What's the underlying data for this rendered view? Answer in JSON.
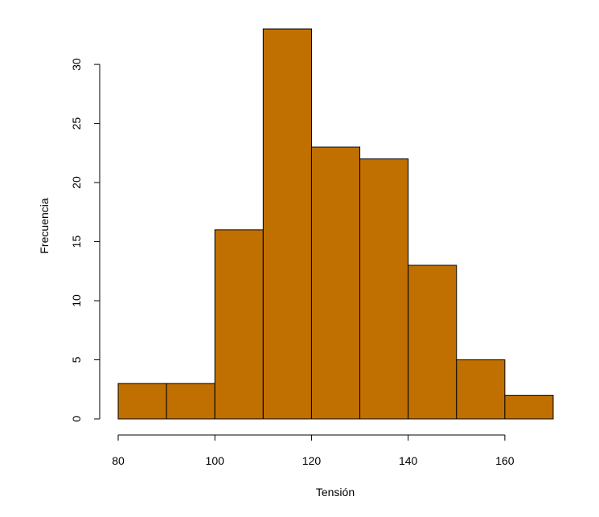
{
  "chart_data": {
    "type": "bar",
    "subtype": "histogram",
    "xlabel": "Tensión",
    "ylabel": "Frecuencia",
    "bins": [
      {
        "from": 80,
        "to": 90,
        "count": 3
      },
      {
        "from": 90,
        "to": 100,
        "count": 3
      },
      {
        "from": 100,
        "to": 110,
        "count": 16
      },
      {
        "from": 110,
        "to": 120,
        "count": 33
      },
      {
        "from": 120,
        "to": 130,
        "count": 23
      },
      {
        "from": 130,
        "to": 140,
        "count": 22
      },
      {
        "from": 140,
        "to": 150,
        "count": 13
      },
      {
        "from": 150,
        "to": 160,
        "count": 5
      },
      {
        "from": 160,
        "to": 170,
        "count": 2
      }
    ],
    "xlim": [
      80,
      170
    ],
    "ylim": [
      0,
      33
    ],
    "x_ticks": [
      80,
      100,
      120,
      140,
      160
    ],
    "y_ticks": [
      0,
      5,
      10,
      15,
      20,
      25,
      30
    ],
    "bar_color": "#c07000",
    "grid": false,
    "legend": "none"
  }
}
